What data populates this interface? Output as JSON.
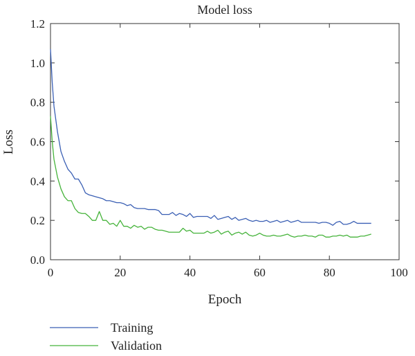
{
  "chart_data": {
    "type": "line",
    "title": "Model loss",
    "xlabel": "Epoch",
    "ylabel": "Loss",
    "xlim": [
      0,
      100
    ],
    "ylim": [
      0,
      1.2
    ],
    "xticks": [
      "0",
      "20",
      "40",
      "60",
      "80",
      "100"
    ],
    "yticks": [
      "0.0",
      "0.2",
      "0.4",
      "0.6",
      "0.8",
      "1.0",
      "1.2"
    ],
    "grid": false,
    "legend": "bottom-left",
    "series": [
      {
        "name": "Training",
        "color": "#3a5fb4",
        "x": [
          0,
          0.5,
          1,
          2,
          3,
          4,
          5,
          6,
          7,
          8,
          9,
          10,
          11,
          12,
          13,
          14,
          15,
          16,
          17,
          18,
          19,
          20,
          21,
          22,
          23,
          24,
          25,
          26,
          27,
          28,
          29,
          30,
          31,
          32,
          33,
          34,
          35,
          36,
          37,
          38,
          39,
          40,
          41,
          42,
          43,
          44,
          45,
          46,
          47,
          48,
          49,
          50,
          51,
          52,
          53,
          54,
          55,
          56,
          57,
          58,
          59,
          60,
          61,
          62,
          63,
          64,
          65,
          66,
          67,
          68,
          69,
          70,
          71,
          72,
          73,
          74,
          75,
          76,
          77,
          78,
          79,
          80,
          81,
          82,
          83,
          84,
          85,
          86,
          87,
          88,
          89,
          90,
          91,
          92
        ],
        "y": [
          1.07,
          0.9,
          0.78,
          0.65,
          0.55,
          0.5,
          0.46,
          0.44,
          0.41,
          0.41,
          0.38,
          0.34,
          0.33,
          0.325,
          0.32,
          0.315,
          0.31,
          0.3,
          0.3,
          0.295,
          0.29,
          0.29,
          0.285,
          0.275,
          0.28,
          0.265,
          0.26,
          0.26,
          0.26,
          0.255,
          0.255,
          0.255,
          0.25,
          0.23,
          0.23,
          0.23,
          0.24,
          0.225,
          0.235,
          0.23,
          0.22,
          0.235,
          0.215,
          0.22,
          0.22,
          0.22,
          0.22,
          0.21,
          0.225,
          0.205,
          0.21,
          0.215,
          0.22,
          0.205,
          0.215,
          0.2,
          0.205,
          0.21,
          0.2,
          0.195,
          0.2,
          0.195,
          0.195,
          0.2,
          0.19,
          0.195,
          0.2,
          0.19,
          0.195,
          0.2,
          0.19,
          0.195,
          0.2,
          0.19,
          0.19,
          0.19,
          0.19,
          0.19,
          0.185,
          0.19,
          0.19,
          0.185,
          0.175,
          0.19,
          0.195,
          0.18,
          0.18,
          0.185,
          0.195,
          0.185,
          0.185,
          0.185,
          0.185,
          0.185
        ]
      },
      {
        "name": "Validation",
        "color": "#45b33a",
        "x": [
          0,
          0.5,
          1,
          2,
          3,
          4,
          5,
          6,
          7,
          8,
          9,
          10,
          11,
          12,
          13,
          14,
          15,
          16,
          17,
          18,
          19,
          20,
          21,
          22,
          23,
          24,
          25,
          26,
          27,
          28,
          29,
          30,
          31,
          32,
          33,
          34,
          35,
          36,
          37,
          38,
          39,
          40,
          41,
          42,
          43,
          44,
          45,
          46,
          47,
          48,
          49,
          50,
          51,
          52,
          53,
          54,
          55,
          56,
          57,
          58,
          59,
          60,
          61,
          62,
          63,
          64,
          65,
          66,
          67,
          68,
          69,
          70,
          71,
          72,
          73,
          74,
          75,
          76,
          77,
          78,
          79,
          80,
          81,
          82,
          83,
          84,
          85,
          86,
          87,
          88,
          89,
          90,
          91,
          92
        ],
        "y": [
          0.73,
          0.6,
          0.51,
          0.42,
          0.36,
          0.32,
          0.3,
          0.3,
          0.26,
          0.24,
          0.235,
          0.235,
          0.22,
          0.2,
          0.2,
          0.245,
          0.2,
          0.2,
          0.18,
          0.185,
          0.17,
          0.2,
          0.17,
          0.17,
          0.16,
          0.175,
          0.165,
          0.17,
          0.155,
          0.165,
          0.165,
          0.155,
          0.15,
          0.15,
          0.145,
          0.14,
          0.14,
          0.14,
          0.14,
          0.16,
          0.145,
          0.15,
          0.135,
          0.135,
          0.135,
          0.135,
          0.145,
          0.135,
          0.14,
          0.15,
          0.13,
          0.14,
          0.145,
          0.125,
          0.135,
          0.14,
          0.13,
          0.14,
          0.125,
          0.12,
          0.125,
          0.135,
          0.125,
          0.12,
          0.12,
          0.125,
          0.12,
          0.12,
          0.125,
          0.13,
          0.12,
          0.115,
          0.12,
          0.12,
          0.125,
          0.12,
          0.12,
          0.115,
          0.125,
          0.125,
          0.115,
          0.115,
          0.12,
          0.12,
          0.125,
          0.12,
          0.125,
          0.115,
          0.115,
          0.115,
          0.12,
          0.12,
          0.125,
          0.13
        ]
      }
    ]
  }
}
